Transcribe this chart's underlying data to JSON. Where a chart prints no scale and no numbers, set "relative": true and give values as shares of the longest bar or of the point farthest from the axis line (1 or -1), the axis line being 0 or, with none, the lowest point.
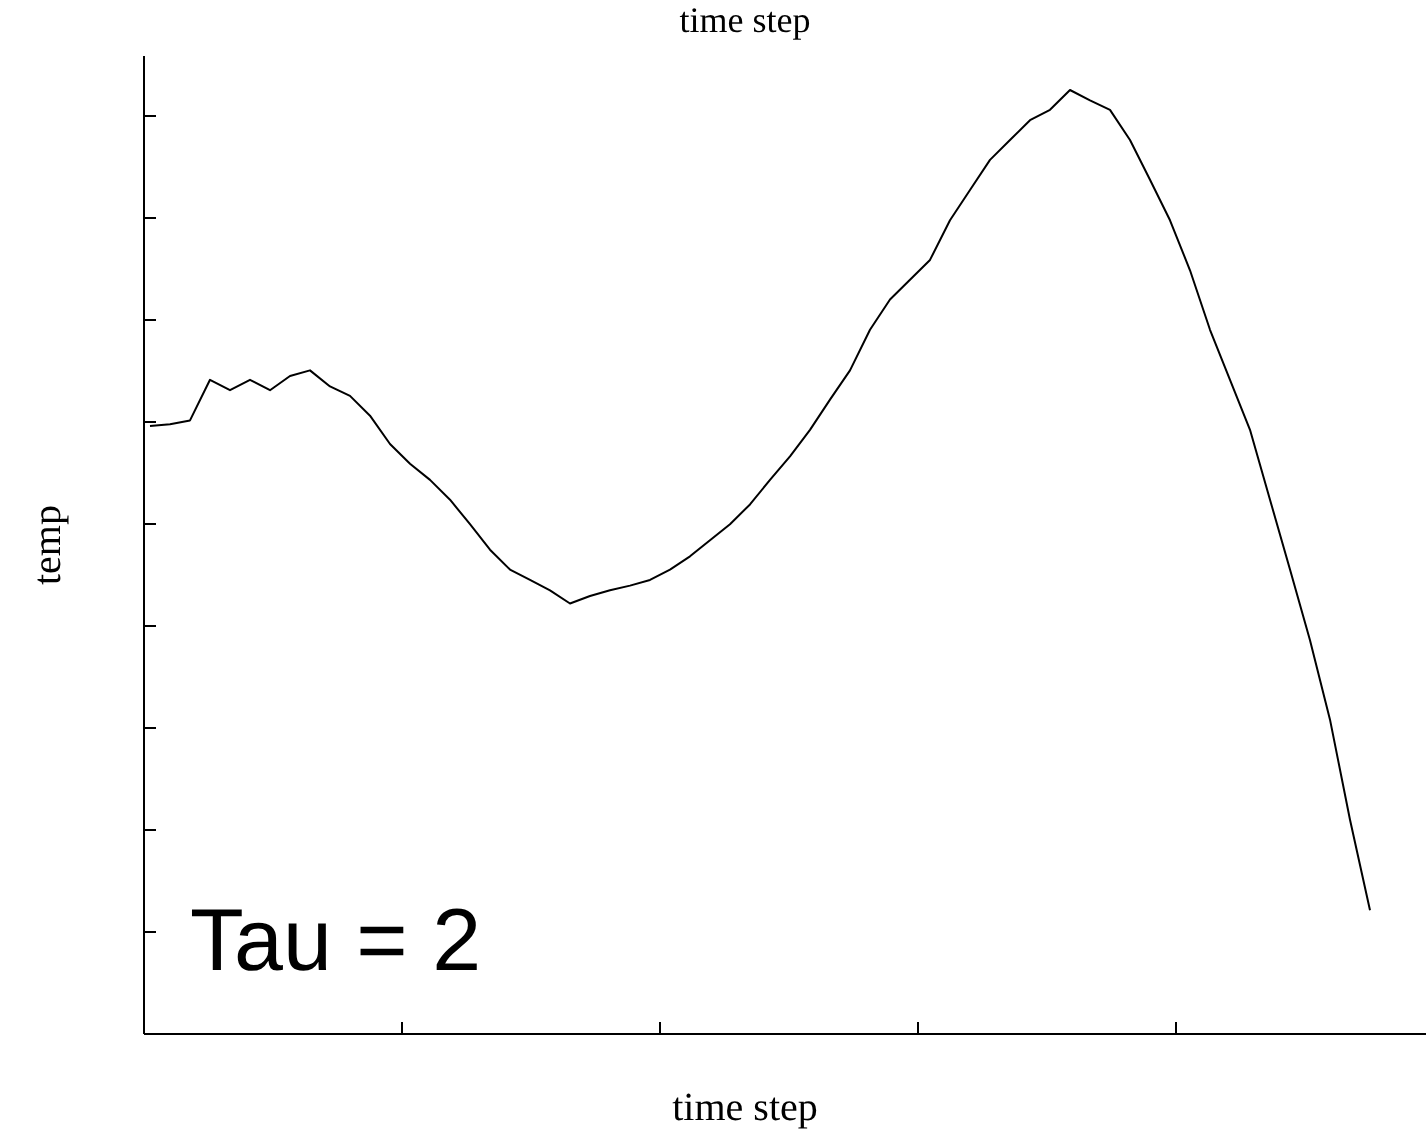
{
  "chart_data": {
    "type": "line",
    "title": "time step",
    "xlabel": "time step",
    "ylabel": "temp",
    "annotations": [
      "Tau = 2"
    ],
    "relative": true,
    "categories": [
      null,
      null,
      null,
      null,
      null,
      null,
      null,
      null,
      null,
      null,
      null,
      null,
      null,
      null,
      null,
      null,
      null,
      null,
      null,
      null,
      null,
      null,
      null,
      null,
      null,
      null,
      null,
      null,
      null,
      null,
      null,
      null,
      null,
      null,
      null,
      null,
      null,
      null,
      null,
      null,
      null,
      null,
      null,
      null,
      null,
      null,
      null,
      null,
      null,
      null,
      null,
      null,
      null,
      null,
      null,
      null,
      null,
      null,
      null,
      null,
      null,
      null
    ],
    "series": [
      {
        "color": "#000000",
        "values": [
          0.644,
          0.646,
          0.65,
          0.693,
          0.682,
          0.693,
          0.682,
          0.697,
          0.703,
          0.686,
          0.676,
          0.655,
          0.625,
          0.604,
          0.587,
          0.566,
          0.54,
          0.513,
          0.492,
          0.481,
          0.47,
          0.456,
          0.464,
          0.47,
          0.475,
          0.481,
          0.492,
          0.506,
          0.523,
          0.54,
          0.561,
          0.587,
          0.612,
          0.64,
          0.672,
          0.703,
          0.746,
          0.778,
          0.799,
          0.82,
          0.862,
          0.894,
          0.926,
          0.947,
          0.968,
          0.979,
          1,
          0.989,
          0.979,
          0.947,
          0.905,
          0.862,
          0.809,
          0.746,
          0.693,
          0.64,
          0.566,
          0.492,
          0.417,
          0.333,
          0.227,
          0.131
        ]
      }
    ]
  }
}
